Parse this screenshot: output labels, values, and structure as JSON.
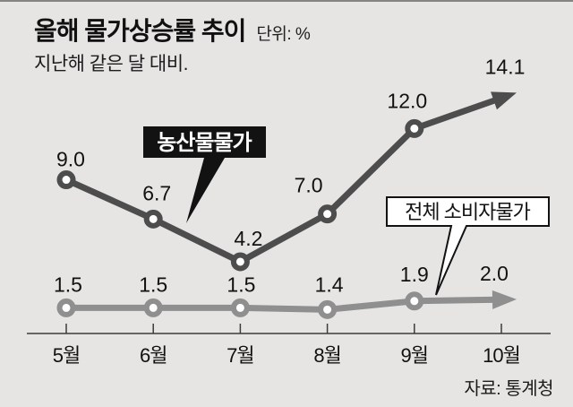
{
  "chart_data": {
    "type": "line",
    "title": "올해 물가상승률 추이",
    "unit": "단위: %",
    "subtitle": "지난해 같은 달 대비.",
    "source": "자료: 통계청",
    "categories": [
      "5월",
      "6월",
      "7월",
      "8월",
      "9월",
      "10월"
    ],
    "series": [
      {
        "name": "농산물물가",
        "values": [
          9.0,
          6.7,
          4.2,
          7.0,
          12.0,
          14.1
        ],
        "point_labels": [
          "9.0",
          "6.7",
          "4.2",
          "7.0",
          "12.0",
          "14.1"
        ],
        "color": "#4d4d4d",
        "callout_style": "black-box",
        "line_end": "arrow"
      },
      {
        "name": "전체 소비자물가",
        "values": [
          1.5,
          1.5,
          1.5,
          1.4,
          1.9,
          2.0
        ],
        "point_labels": [
          "1.5",
          "1.5",
          "1.5",
          "1.4",
          "1.9",
          "2.0"
        ],
        "color": "#8f8f8f",
        "callout_style": "white-box",
        "line_end": "arrow"
      }
    ],
    "ylim": [
      0,
      15
    ],
    "grid": false,
    "legend_position": "callouts-on-plot",
    "colors": {
      "background": "#e6e5e3",
      "axis": "#3c3c3c",
      "text": "#111111"
    }
  }
}
